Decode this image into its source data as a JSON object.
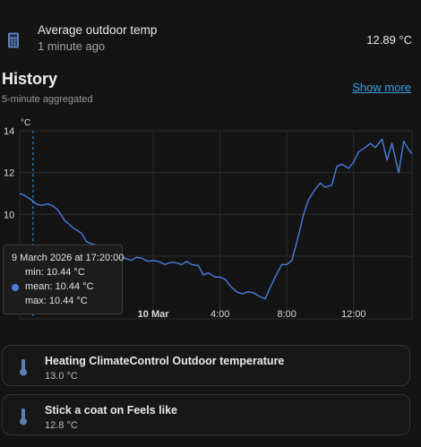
{
  "entity": {
    "name": "Average outdoor temp",
    "last_updated": "1 minute ago",
    "state": "12.89 °C",
    "icon": "calculator-icon"
  },
  "history": {
    "title": "History",
    "subtitle": "5-minute aggregated",
    "show_more": "Show more"
  },
  "chart_data": {
    "type": "line",
    "ylabel": "°C",
    "ylim": [
      5,
      14
    ],
    "y_ticks": [
      "14",
      "12",
      "10",
      "8"
    ],
    "x_tick_labels": [
      "10 Mar",
      "4:00",
      "8:00",
      "12:00"
    ],
    "x_tick_hours": [
      0,
      4,
      8,
      12
    ],
    "xlim_hours": [
      -8.0,
      15.5
    ],
    "grid": true,
    "line_color": "#4a7de0",
    "series": [
      {
        "x_hours": [
          -8.0,
          -7.7,
          -7.3,
          -7.0,
          -6.7,
          -6.3,
          -6.0,
          -5.7,
          -5.3,
          -5.0,
          -4.7,
          -4.3,
          -4.0,
          -3.7,
          -3.3,
          -3.0,
          -2.7,
          -2.3,
          -2.0,
          -1.7,
          -1.3,
          -1.0,
          -0.7,
          -0.3,
          0.0,
          0.3,
          0.7,
          1.0,
          1.3,
          1.7,
          2.0,
          2.3,
          2.7,
          3.0,
          3.3,
          3.7,
          4.0,
          4.3,
          4.7,
          5.0,
          5.3,
          5.7,
          6.0,
          6.3,
          6.7,
          7.0,
          7.3,
          7.7,
          8.0,
          8.3,
          8.7,
          9.0,
          9.3,
          9.7,
          10.0,
          10.3,
          10.7,
          11.0,
          11.3,
          11.7,
          12.0,
          12.3,
          12.7,
          13.0,
          13.3,
          13.7,
          14.0,
          14.3,
          14.7,
          15.0,
          15.3,
          15.5
        ],
        "values": [
          11.0,
          10.9,
          10.7,
          10.5,
          10.44,
          10.5,
          10.4,
          10.2,
          9.7,
          9.5,
          9.3,
          9.1,
          8.7,
          8.6,
          8.5,
          8.3,
          8.1,
          8.2,
          8.0,
          7.9,
          7.8,
          7.95,
          7.9,
          7.75,
          7.8,
          7.75,
          7.6,
          7.7,
          7.7,
          7.6,
          7.75,
          7.6,
          7.55,
          7.1,
          7.2,
          7.0,
          7.0,
          6.9,
          6.5,
          6.3,
          6.2,
          6.3,
          6.25,
          6.1,
          5.95,
          6.5,
          7.0,
          7.6,
          7.6,
          7.8,
          9.0,
          10.0,
          10.7,
          11.2,
          11.5,
          11.3,
          11.4,
          12.3,
          12.4,
          12.2,
          12.5,
          13.0,
          13.2,
          13.4,
          13.2,
          13.6,
          12.6,
          13.4,
          12.0,
          13.5,
          13.1,
          12.9
        ]
      }
    ],
    "cursor_hour": -7.2
  },
  "tooltip": {
    "title": "9 March 2026 at 17:20:00",
    "min": "min: 10.44 °C",
    "mean": "mean: 10.44 °C",
    "max": "max: 10.44 °C"
  },
  "related": [
    {
      "title": "Heating ClimateControl Outdoor temperature",
      "value": "13.0 °C",
      "icon": "thermometer-icon"
    },
    {
      "title": "Stick a coat on Feels like",
      "value": "12.8 °C",
      "icon": "thermometer-icon"
    }
  ]
}
